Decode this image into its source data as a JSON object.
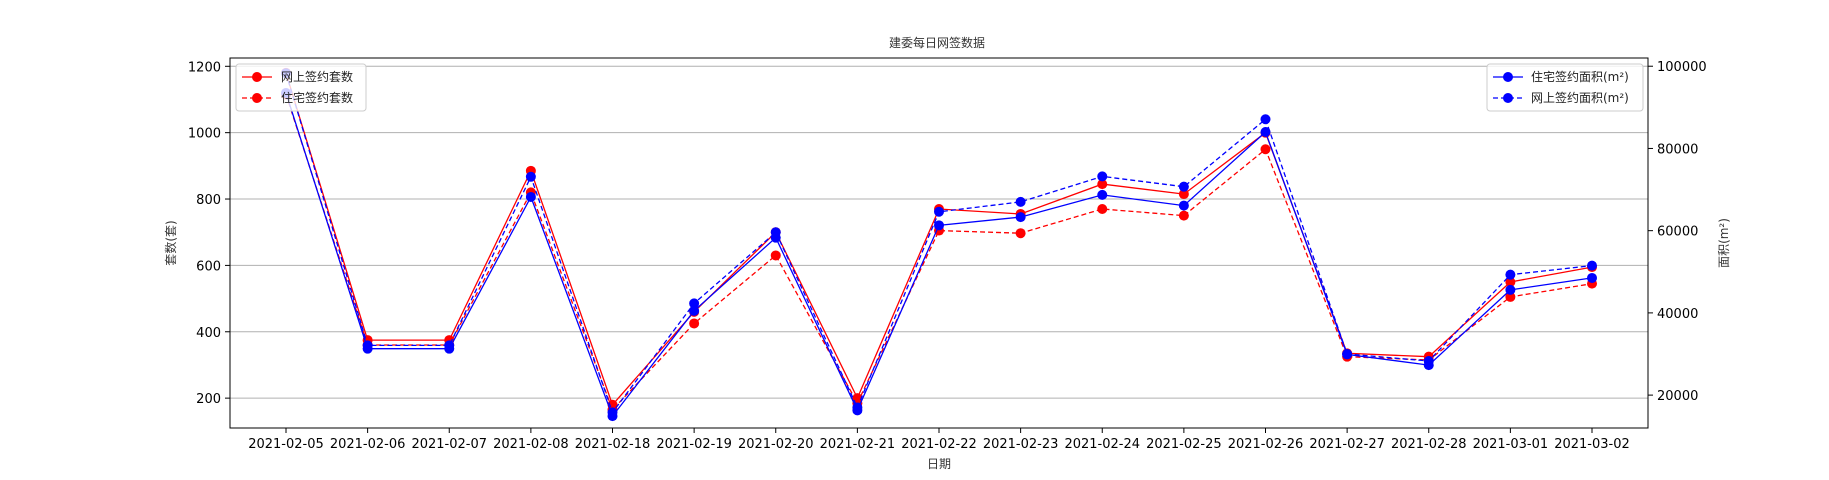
{
  "chart_data": {
    "type": "line",
    "title": "建委每日网签数据",
    "xlabel": "日期",
    "ylabel_left": "套数(套)",
    "ylabel_right": "面积(m²)",
    "categories": [
      "2021-02-05",
      "2021-02-06",
      "2021-02-07",
      "2021-02-08",
      "2021-02-18",
      "2021-02-19",
      "2021-02-20",
      "2021-02-21",
      "2021-02-22",
      "2021-02-23",
      "2021-02-24",
      "2021-02-25",
      "2021-02-26",
      "2021-02-27",
      "2021-02-28",
      "2021-03-01",
      "2021-03-02"
    ],
    "left_axis": {
      "ylim": [
        110,
        1225
      ],
      "ticks": [
        200,
        400,
        600,
        800,
        1000,
        1200
      ]
    },
    "right_axis": {
      "ylim": [
        12000,
        102000
      ],
      "ticks": [
        20000,
        40000,
        60000,
        80000,
        100000
      ]
    },
    "grid": true,
    "legend_left_position": "upper-left",
    "legend_right_position": "upper-right",
    "series": [
      {
        "name": "网上签约套数",
        "axis": "left",
        "color": "#ff0000",
        "linestyle": "solid",
        "values": [
          1180,
          375,
          375,
          885,
          180,
          460,
          700,
          200,
          770,
          755,
          845,
          815,
          1000,
          335,
          325,
          550,
          595
        ]
      },
      {
        "name": "住宅签约套数",
        "axis": "left",
        "color": "#ff0000",
        "linestyle": "dashed",
        "values": [
          1115,
          360,
          360,
          820,
          165,
          425,
          630,
          185,
          705,
          697,
          770,
          750,
          950,
          325,
          315,
          505,
          545
        ]
      },
      {
        "name": "住宅签约面积(m²)",
        "axis": "right",
        "color": "#0000ff",
        "linestyle": "solid",
        "values": [
          93500,
          31300,
          31300,
          68200,
          14900,
          40500,
          58300,
          16300,
          61300,
          63300,
          68700,
          66100,
          84000,
          29900,
          27300,
          45600,
          48500
        ]
      },
      {
        "name": "网上签约面积(m²)",
        "axis": "right",
        "color": "#0000ff",
        "linestyle": "dashed",
        "values": [
          98300,
          32100,
          32100,
          73100,
          15800,
          42300,
          59600,
          17000,
          64600,
          67000,
          73200,
          70700,
          87100,
          30000,
          28300,
          49300,
          51500
        ]
      }
    ]
  }
}
